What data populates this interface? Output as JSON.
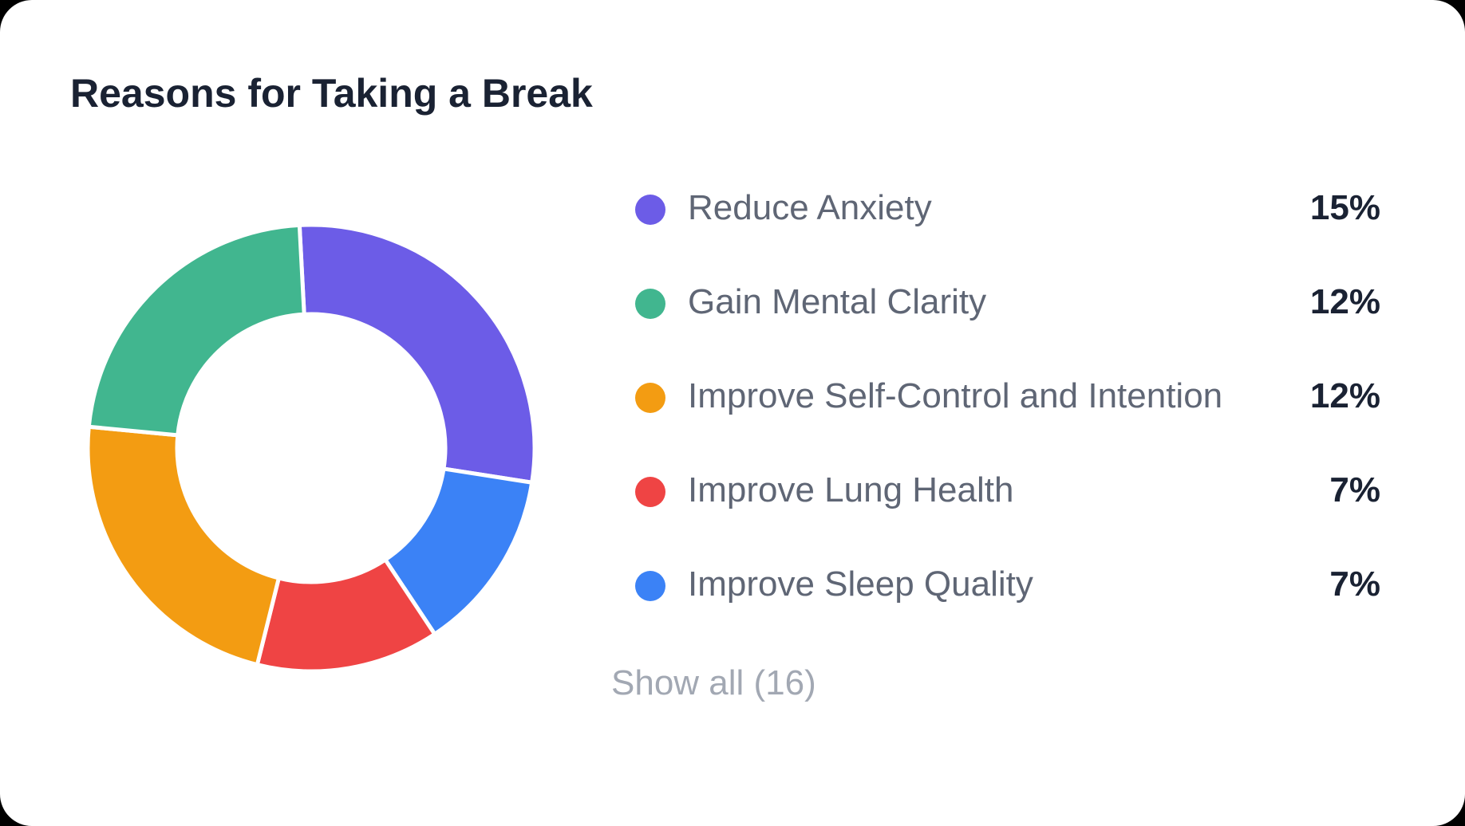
{
  "card": {
    "title": "Reasons for Taking a Break",
    "show_all_label": "Show all (16)"
  },
  "legend": {
    "items": [
      {
        "label": "Reduce Anxiety",
        "value": "15%",
        "color": "#6c5ce7"
      },
      {
        "label": "Gain Mental Clarity",
        "value": "12%",
        "color": "#41b68f"
      },
      {
        "label": "Improve Self-Control and Intention",
        "value": "12%",
        "color": "#f39c12"
      },
      {
        "label": "Improve Lung Health",
        "value": "7%",
        "color": "#ef4444"
      },
      {
        "label": "Improve Sleep Quality",
        "value": "7%",
        "color": "#3b82f6"
      }
    ]
  },
  "chart_data": {
    "type": "pie",
    "variant": "donut",
    "categories": [
      "Reduce Anxiety",
      "Improve Sleep Quality",
      "Improve Lung Health",
      "Improve Self-Control and Intention",
      "Gain Mental Clarity"
    ],
    "values": [
      15,
      7,
      7,
      12,
      12
    ],
    "unit": "%",
    "colors": [
      "#6c5ce7",
      "#3b82f6",
      "#ef4444",
      "#f39c12",
      "#41b68f"
    ],
    "legend": "right"
  }
}
